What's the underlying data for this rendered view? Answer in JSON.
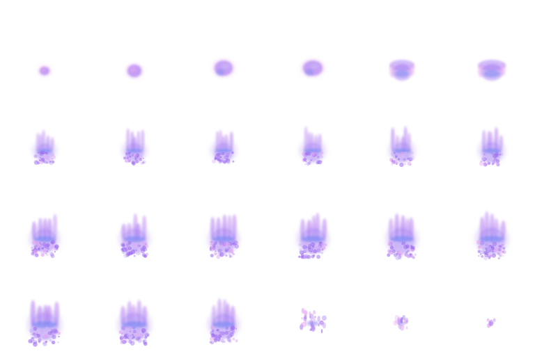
{
  "figure": {
    "rows": 4,
    "columns": 6,
    "colors": {
      "background": "#ffffff",
      "violet": "#9c6cf0",
      "blue": "#6a7df2",
      "pink": "#e3a6f2",
      "lavender": "#c9b3f7"
    },
    "frames": [
      {
        "shape": "ball"
      },
      {
        "shape": "ball"
      },
      {
        "shape": "blob"
      },
      {
        "shape": "blob"
      },
      {
        "shape": "cup"
      },
      {
        "shape": "cup"
      },
      {
        "shape": "plume"
      },
      {
        "shape": "plume"
      },
      {
        "shape": "plume"
      },
      {
        "shape": "plume"
      },
      {
        "shape": "plume"
      },
      {
        "shape": "plume"
      },
      {
        "shape": "plume"
      },
      {
        "shape": "plume"
      },
      {
        "shape": "plume"
      },
      {
        "shape": "plume"
      },
      {
        "shape": "plume"
      },
      {
        "shape": "plume"
      },
      {
        "shape": "plume"
      },
      {
        "shape": "plume"
      },
      {
        "shape": "plume"
      },
      {
        "shape": "fragment"
      },
      {
        "shape": "fragment"
      },
      {
        "shape": "fragment"
      }
    ]
  }
}
